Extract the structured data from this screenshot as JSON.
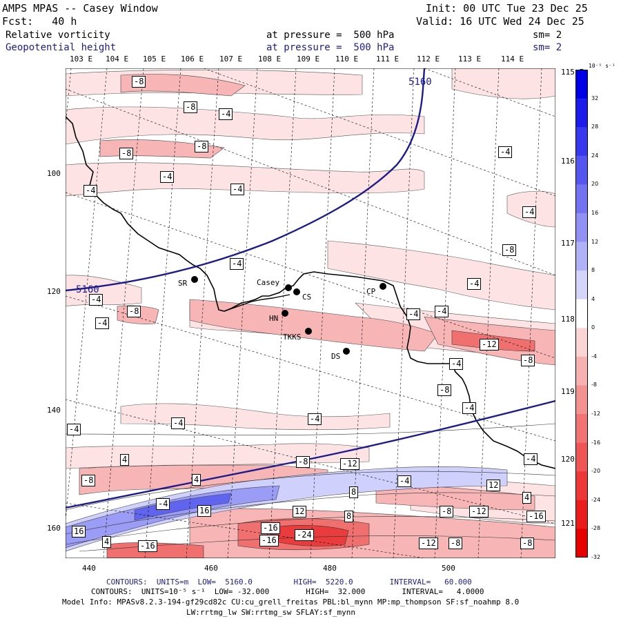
{
  "header": {
    "title": "AMPS MPAS -- Casey Window",
    "init": "Init: 00 UTC Tue 23 Dec 25",
    "fcst": "Fcst:   40 h",
    "valid": "Valid: 16 UTC Wed 24 Dec 25",
    "field1_name": "Relative vorticity",
    "field1_level": "at pressure =  500 hPa",
    "field1_sm": "sm= 2",
    "field2_name": "Geopotential height",
    "field2_level": "at pressure =  500 hPa",
    "field2_sm": "sm= 2"
  },
  "top_longitudes": [
    "103 E",
    "104 E",
    "105 E",
    "106 E",
    "107 E",
    "108 E",
    "109 E",
    "110 E",
    "111 E",
    "112 E",
    "113 E",
    "114 E"
  ],
  "right_longitudes": [
    "115 E",
    "116 E",
    "117 E",
    "118 E",
    "119 E",
    "120 E",
    "121 E"
  ],
  "x_ticks": [
    "440",
    "460",
    "480",
    "500"
  ],
  "y_ticks": [
    "100",
    "120",
    "140",
    "160"
  ],
  "stations": [
    {
      "label": "SR"
    },
    {
      "label": "Casey"
    },
    {
      "label": "CS"
    },
    {
      "label": "CP"
    },
    {
      "label": "HN"
    },
    {
      "label": "TKKS"
    },
    {
      "label": "DS"
    }
  ],
  "height_contour_label": "5160",
  "vort_labels": [
    "-8",
    "-8",
    "-4",
    "-8",
    "-8",
    "-4",
    "-4",
    "-4",
    "-4",
    "-4",
    "-8",
    "-4",
    "-4",
    "-4",
    "-4",
    "-8",
    "-4",
    "-4",
    "-8",
    "-4",
    "-12",
    "-8",
    "-4",
    "-4",
    "-4",
    "-4",
    "4",
    "-8",
    "-8",
    "-12",
    "4",
    "-4",
    "8",
    "12",
    "4",
    "-4",
    "16",
    "12",
    "8",
    "-16",
    "-8",
    "-12",
    "-4",
    "-16",
    "16",
    "-16",
    "-24",
    "4",
    "-16",
    "-12",
    "-8",
    "-8"
  ],
  "colorbar": {
    "unit": "10⁻⁵ s⁻¹",
    "ticks": [
      "32",
      "28",
      "24",
      "20",
      "16",
      "12",
      "8",
      "4",
      "0",
      "-4",
      "-8",
      "-12",
      "-16",
      "-20",
      "-24",
      "-28",
      "-32"
    ],
    "colors": [
      "#0000e6",
      "#1c1ceb",
      "#3838ee",
      "#5555f0",
      "#7373f2",
      "#9191f4",
      "#b1b1f7",
      "#d5d5fb",
      "#ffffff",
      "#fbd5d5",
      "#f7b1b1",
      "#f49191",
      "#f27373",
      "#f05555",
      "#ee3838",
      "#eb1c1c",
      "#e60000"
    ]
  },
  "footer": {
    "line1": "CONTOURS:  UNITS=m  LOW=  5160.0         HIGH=  5220.0        INTERVAL=   60.000",
    "line2": "CONTOURS:  UNITS=10⁻⁵ s⁻¹  LOW= -32.000        HIGH=  32.000        INTERVAL=   4.0000",
    "line3": "Model Info: MPASv8.2.3-194-gf29cd82c CU:cu_grell_freitas PBL:bl_mynn MP:mp_thompson SF:sf_noahmp 8.0",
    "line4": "LW:rrtmg_lw SW:rrtmg_sw SFLAY:sf_mynn"
  }
}
